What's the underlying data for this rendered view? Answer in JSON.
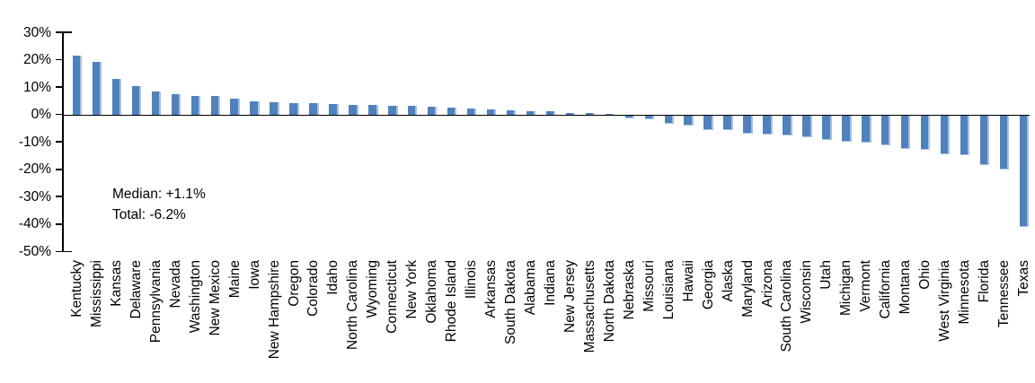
{
  "chart_data": {
    "type": "bar",
    "title": "",
    "xlabel": "",
    "ylabel": "",
    "ylim": [
      -50,
      30
    ],
    "yticks": [
      30,
      20,
      10,
      0,
      -10,
      -20,
      -30,
      -40,
      -50
    ],
    "ytick_suffix": "%",
    "grid": false,
    "legend": "none",
    "bar_color": "#4F81BD",
    "bar_edge_color": "#A9C1DE",
    "axis_color": "#000000",
    "categories": [
      "Kentucky",
      "Mississippi",
      "Kansas",
      "Delaware",
      "Pennsylvania",
      "Nevada",
      "Washington",
      "New Mexico",
      "Maine",
      "Iowa",
      "New Hampshire",
      "Oregon",
      "Colorado",
      "Idaho",
      "North Carolina",
      "Wyoming",
      "Connecticut",
      "New York",
      "Oklahoma",
      "Rhode Island",
      "Illinois",
      "Arkansas",
      "South Dakota",
      "Alabama",
      "Indiana",
      "New Jersey",
      "Massachusetts",
      "North Dakota",
      "Nebraska",
      "Missouri",
      "Louisiana",
      "Hawaii",
      "Georgia",
      "Alaska",
      "Maryland",
      "Arizona",
      "South Carolina",
      "Wisconsin",
      "Utah",
      "Michigan",
      "Vermont",
      "California",
      "Montana",
      "Ohio",
      "West Virginia",
      "Minnesota",
      "Florida",
      "Tennessee",
      "Texas"
    ],
    "values": [
      21.6,
      19.3,
      12.9,
      10.4,
      8.3,
      7.5,
      6.9,
      6.7,
      5.7,
      4.9,
      4.6,
      4.3,
      4.0,
      3.8,
      3.6,
      3.4,
      3.2,
      3.1,
      3.0,
      2.6,
      2.3,
      2.0,
      1.6,
      1.2,
      1.1,
      0.7,
      0.4,
      0.1,
      -0.8,
      -1.4,
      -2.9,
      -3.5,
      -5.1,
      -5.3,
      -6.5,
      -6.8,
      -7.0,
      -7.9,
      -8.7,
      -9.3,
      -9.7,
      -10.6,
      -12.0,
      -12.4,
      -13.9,
      -14.4,
      -18.0,
      -19.6,
      -40.4
    ],
    "annotations": [
      "Median: +1.1%",
      "Total: -6.2%"
    ]
  },
  "annotation": {
    "median_label": "Median: +1.1%",
    "total_label": "Total: -6.2%"
  }
}
